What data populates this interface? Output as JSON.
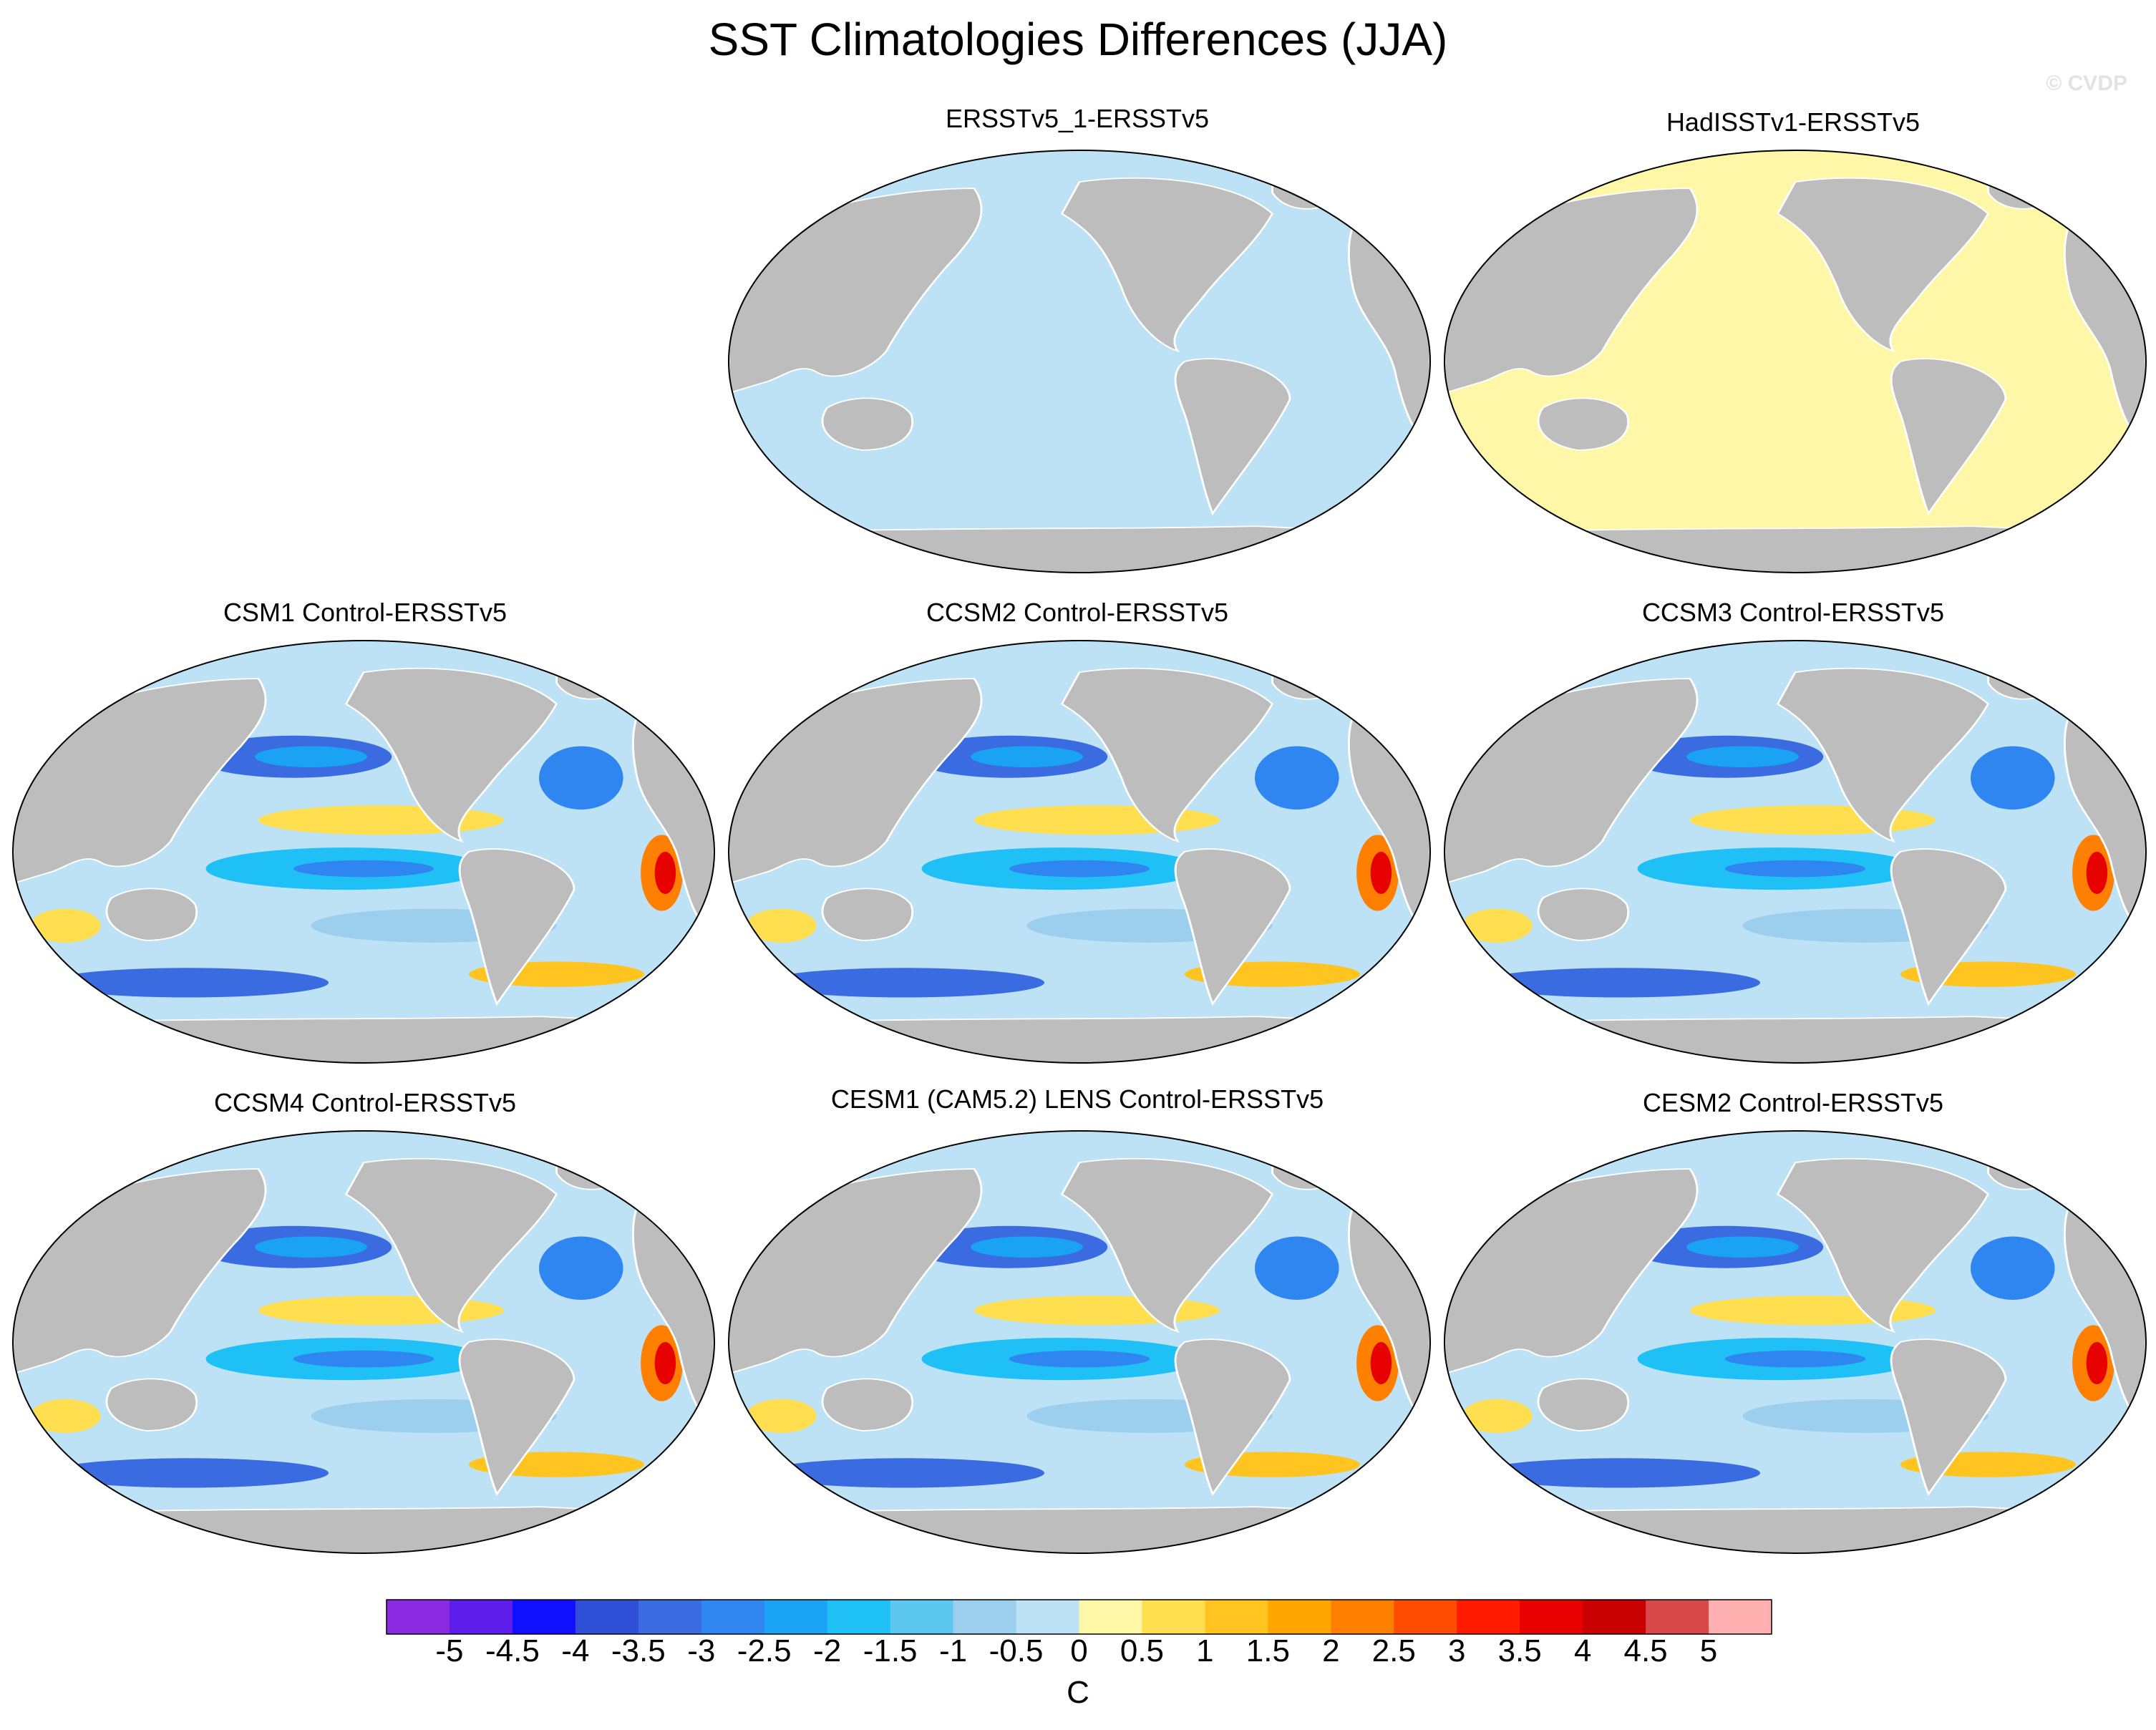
{
  "title": "SST Climatologies Differences (JJA)",
  "watermark": "© CVDP",
  "panels": [
    {
      "title": "ERSSTv5_1-ERSSTv5",
      "pattern": "uniform-negative"
    },
    {
      "title": "HadISSTv1-ERSSTv5",
      "pattern": "uniform-positive"
    },
    {
      "title": "CSM1 Control-ERSSTv5",
      "pattern": "mixed"
    },
    {
      "title": "CCSM2 Control-ERSSTv5",
      "pattern": "mixed"
    },
    {
      "title": "CCSM3 Control-ERSSTv5",
      "pattern": "mixed"
    },
    {
      "title": "CCSM4 Control-ERSSTv5",
      "pattern": "mixed"
    },
    {
      "title": "CESM1 (CAM5.2) LENS Control-ERSSTv5",
      "pattern": "mixed"
    },
    {
      "title": "CESM2 Control-ERSSTv5",
      "pattern": "mixed"
    }
  ],
  "colorbar": {
    "units": "C",
    "tick_labels": [
      "-5",
      "-4.5",
      "-4",
      "-3.5",
      "-3",
      "-2.5",
      "-2",
      "-1.5",
      "-1",
      "-0.5",
      "0",
      "0.5",
      "1",
      "1.5",
      "2",
      "2.5",
      "3",
      "3.5",
      "4",
      "4.5",
      "5"
    ],
    "colors": [
      "#8a2be2",
      "#5c1ee8",
      "#1010ff",
      "#2f4fd6",
      "#3b6be0",
      "#2f86f0",
      "#1aa2f5",
      "#1ec0f5",
      "#5cc8f0",
      "#9ccfee",
      "#bde2f5",
      "#fff7a8",
      "#ffdf50",
      "#ffc420",
      "#ffa500",
      "#ff8000",
      "#ff4d00",
      "#ff1a00",
      "#e60000",
      "#c80000",
      "#d84848",
      "#ffb0b0"
    ]
  },
  "land_color": "#bdbdbd",
  "ocean_negative_color": "#bde2f5",
  "ocean_positive_color": "#fff7a8"
}
